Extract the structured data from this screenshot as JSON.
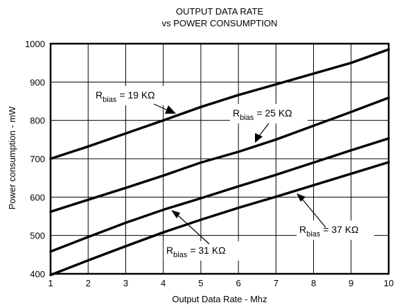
{
  "chart_data": {
    "type": "line",
    "title": "OUTPUT DATA RATE",
    "subtitle": "vs POWER CONSUMPTION",
    "xlabel": "Output Data Rate - Mhz",
    "ylabel": "Power consumption - mW",
    "xlim": [
      1,
      10
    ],
    "ylim": [
      400,
      1000
    ],
    "xticks": [
      1,
      2,
      3,
      4,
      5,
      6,
      7,
      8,
      9,
      10
    ],
    "yticks": [
      400,
      500,
      600,
      700,
      800,
      900,
      1000
    ],
    "grid": true,
    "line_color": "#000000",
    "series": [
      {
        "label_main": "R",
        "label_sub": "bias",
        "label_value": "= 19 KΩ",
        "x": [
          1,
          2,
          3,
          4,
          5,
          6,
          7,
          8,
          9,
          10
        ],
        "y": [
          700,
          732,
          766,
          800,
          835,
          866,
          894,
          922,
          950,
          985
        ]
      },
      {
        "label_main": "R",
        "label_sub": "bias",
        "label_value": "= 25 KΩ",
        "x": [
          1,
          2,
          3,
          4,
          5,
          6,
          7,
          8,
          9,
          10
        ],
        "y": [
          562,
          593,
          624,
          656,
          690,
          718,
          750,
          786,
          822,
          859
        ]
      },
      {
        "label_main": "R",
        "label_sub": "bias",
        "label_value": "= 31 KΩ",
        "x": [
          1,
          2,
          3,
          4,
          5,
          6,
          7,
          8,
          9,
          10
        ],
        "y": [
          458,
          496,
          533,
          567,
          597,
          628,
          658,
          690,
          722,
          753
        ]
      },
      {
        "label_main": "R",
        "label_sub": "bias",
        "label_value": "= 37 KΩ",
        "x": [
          1,
          2,
          3,
          4,
          5,
          6,
          7,
          8,
          9,
          10
        ],
        "y": [
          397,
          435,
          472,
          508,
          541,
          572,
          601,
          631,
          661,
          691
        ]
      }
    ]
  }
}
